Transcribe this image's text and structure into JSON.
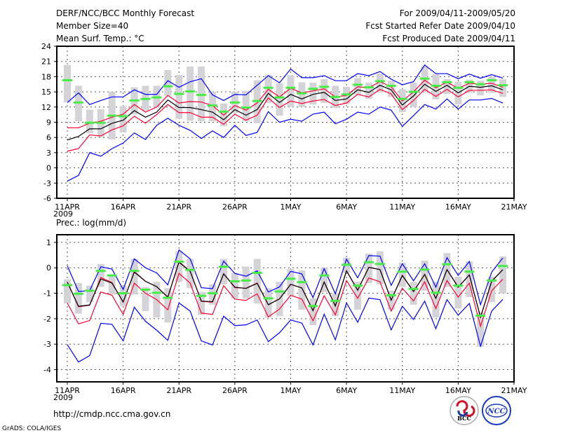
{
  "header": {
    "title": "DERF/NCC/BCC Monthly Forecast",
    "member_size": "Member Size=40",
    "variable": "Mean Surf. Temp.: °C",
    "period": "For 2009/04/11-2009/05/20",
    "fcst_started": "Fcst Started Refer Date 2009/04/10",
    "fcst_produced": "Fcst Produced Date 2009/04/11"
  },
  "footer": {
    "url": "http://cmdp.ncc.cma.gov.cn",
    "grads": "GrADS: COLA/IGES",
    "logos": [
      "BCC",
      "NCC"
    ]
  },
  "colors": {
    "envelope": "#0000ff",
    "spread": "#ff0033",
    "mean": "#000000",
    "marker": "#44ee44",
    "box": "#d4d4d8"
  },
  "chart_data": [
    {
      "type": "line",
      "title": "Mean Surf. Temp.: °C",
      "ylim": [
        -6,
        24
      ],
      "yticks": [
        "24",
        "21",
        "18",
        "15",
        "12",
        "9",
        "6",
        "3",
        "0",
        "-3",
        "-6"
      ],
      "xticks": [
        {
          "label": "11APR",
          "day": 0,
          "sub": "2009"
        },
        {
          "label": "16APR",
          "day": 5
        },
        {
          "label": "21APR",
          "day": 10
        },
        {
          "label": "26APR",
          "day": 15
        },
        {
          "label": "1MAY",
          "day": 20
        },
        {
          "label": "6MAY",
          "day": 25
        },
        {
          "label": "11MAY",
          "day": 30
        },
        {
          "label": "16MAY",
          "day": 35
        },
        {
          "label": "21MAY",
          "day": 40
        }
      ],
      "grid": true,
      "series": [
        {
          "name": "max",
          "color": "#0000ff",
          "values": [
            12.9,
            14.8,
            12.5,
            13.3,
            14.0,
            14.0,
            15.4,
            14.5,
            14.5,
            17.2,
            15.9,
            17.0,
            17.6,
            14.4,
            13.3,
            14.5,
            14.4,
            16.3,
            18.2,
            16.8,
            19.5,
            17.8,
            17.8,
            18.2,
            17.2,
            17.2,
            18.6,
            18.2,
            19.0,
            17.5,
            16.4,
            17.0,
            20.3,
            18.6,
            18.6,
            17.6,
            18.5,
            17.7,
            18.4,
            17.7
          ]
        },
        {
          "name": "upper",
          "color": "#ff0033",
          "values": [
            7.9,
            7.9,
            8.8,
            9.2,
            10.0,
            10.6,
            12.5,
            11.0,
            12.0,
            14.3,
            12.8,
            13.1,
            13.0,
            12.3,
            10.4,
            12.3,
            11.4,
            12.8,
            15.5,
            14.0,
            15.7,
            14.8,
            15.2,
            15.6,
            14.0,
            14.3,
            16.0,
            15.8,
            17.0,
            16.0,
            13.2,
            15.0,
            17.3,
            15.8,
            16.9,
            15.7,
            16.7,
            16.5,
            16.7,
            15.9
          ]
        },
        {
          "name": "mean",
          "color": "#000000",
          "values": [
            5.5,
            6.2,
            7.7,
            7.7,
            8.8,
            9.4,
            11.3,
            10.0,
            11.0,
            13.4,
            11.9,
            11.9,
            11.5,
            11.0,
            9.5,
            11.5,
            10.4,
            11.5,
            14.7,
            12.9,
            14.5,
            13.6,
            14.5,
            14.9,
            13.3,
            13.6,
            15.4,
            14.9,
            16.3,
            15.4,
            12.4,
            14.2,
            16.5,
            15.1,
            16.3,
            14.8,
            16.1,
            15.9,
            16.2,
            15.4
          ]
        },
        {
          "name": "lower",
          "color": "#ff0033",
          "values": [
            3.3,
            3.8,
            6.5,
            6.3,
            7.5,
            8.3,
            10.2,
            8.8,
            10.5,
            12.5,
            10.9,
            10.9,
            10.0,
            10.0,
            8.6,
            10.6,
            9.4,
            10.4,
            13.8,
            11.9,
            13.2,
            12.7,
            13.2,
            13.5,
            12.3,
            12.8,
            14.5,
            14.0,
            15.5,
            14.6,
            11.5,
            13.3,
            15.5,
            14.1,
            15.5,
            14.0,
            15.3,
            15.3,
            15.4,
            14.7
          ]
        },
        {
          "name": "min",
          "color": "#0000ff",
          "values": [
            -2.6,
            -1.5,
            3.0,
            2.3,
            3.8,
            4.9,
            6.9,
            5.6,
            8.4,
            9.8,
            8.4,
            7.4,
            5.8,
            7.3,
            6.0,
            8.4,
            6.4,
            7.0,
            11.1,
            9.0,
            9.6,
            9.2,
            10.6,
            11.0,
            8.7,
            9.6,
            11.0,
            10.6,
            12.0,
            11.4,
            8.2,
            10.3,
            12.5,
            11.6,
            13.6,
            11.6,
            13.4,
            13.4,
            13.7,
            12.8
          ]
        }
      ],
      "markers": [
        17.3,
        12.9,
        8.9,
        8.9,
        10.3,
        10.2,
        13.3,
        13.6,
        13.9,
        16.1,
        14.6,
        15.1,
        14.4,
        12.3,
        11.1,
        12.9,
        11.9,
        13.2,
        15.8,
        13.9,
        15.8,
        14.7,
        15.6,
        16.0,
        14.0,
        14.5,
        16.4,
        15.9,
        17.1,
        16.2,
        13.6,
        15.0,
        17.6,
        16.2,
        16.9,
        15.8,
        16.9,
        16.5,
        17.3,
        16.3
      ],
      "boxes": [
        [
          12.9,
          20.3
        ],
        [
          9.2,
          16.2
        ],
        [
          6.8,
          11.5
        ],
        [
          6.1,
          11.6
        ],
        [
          5.6,
          15.0
        ],
        [
          7.0,
          12.2
        ],
        [
          10.6,
          15.9
        ],
        [
          11.3,
          16.2
        ],
        [
          12.0,
          16.2
        ],
        [
          14.2,
          19.3
        ],
        [
          9.7,
          18.3
        ],
        [
          9.3,
          20.0
        ],
        [
          9.2,
          20.0
        ],
        [
          9.2,
          15.0
        ],
        [
          8.2,
          12.7
        ],
        [
          10.8,
          15.0
        ],
        [
          9.2,
          15.2
        ],
        [
          8.8,
          17.3
        ],
        [
          12.8,
          18.4
        ],
        [
          10.3,
          16.7
        ],
        [
          12.0,
          18.3
        ],
        [
          12.0,
          16.9
        ],
        [
          12.5,
          16.8
        ],
        [
          12.8,
          17.5
        ],
        [
          11.8,
          16.2
        ],
        [
          12.6,
          16.0
        ],
        [
          14.4,
          17.7
        ],
        [
          13.6,
          16.8
        ],
        [
          14.9,
          18.6
        ],
        [
          14.0,
          17.2
        ],
        [
          11.0,
          15.5
        ],
        [
          12.0,
          16.8
        ],
        [
          15.0,
          20.0
        ],
        [
          13.5,
          18.5
        ],
        [
          14.6,
          17.5
        ],
        [
          12.5,
          17.0
        ],
        [
          14.8,
          17.4
        ],
        [
          14.3,
          17.2
        ],
        [
          14.8,
          18.0
        ],
        [
          14.0,
          17.5
        ]
      ]
    },
    {
      "type": "line",
      "title": "Prec.: log(mm/d)",
      "ylim": [
        -4.48,
        1.3
      ],
      "yticks": [
        "1",
        "0",
        "-1",
        "-2",
        "-3",
        "-4"
      ],
      "xticks": [
        {
          "label": "11APR",
          "day": 0,
          "sub": "2009"
        },
        {
          "label": "16APR",
          "day": 5
        },
        {
          "label": "21APR",
          "day": 10
        },
        {
          "label": "26APR",
          "day": 15
        },
        {
          "label": "1MAY",
          "day": 20
        },
        {
          "label": "6MAY",
          "day": 25
        },
        {
          "label": "11MAY",
          "day": 30
        },
        {
          "label": "16MAY",
          "day": 35
        },
        {
          "label": "21MAY",
          "day": 40
        }
      ],
      "grid": true,
      "series": [
        {
          "name": "max",
          "color": "#0000ff",
          "values": [
            0.08,
            -0.93,
            -0.9,
            0.04,
            -0.05,
            -0.85,
            0.35,
            0.0,
            -0.2,
            -0.67,
            0.7,
            0.35,
            -0.78,
            -0.82,
            0.26,
            -0.22,
            -0.33,
            -0.12,
            -0.95,
            -0.75,
            -0.14,
            -0.24,
            -1.17,
            -0.03,
            -1.02,
            0.34,
            -0.39,
            0.48,
            0.46,
            -0.69,
            0.16,
            -0.51,
            0.16,
            -0.76,
            0.4,
            -0.3,
            0.25,
            -1.45,
            -0.17,
            0.39
          ]
        },
        {
          "name": "upper",
          "color": "#ff0033",
          "values": [
            -0.56,
            -1.53,
            -1.47,
            -0.38,
            -0.58,
            -1.35,
            -0.15,
            -0.53,
            -0.74,
            -1.15,
            0.24,
            -0.13,
            -1.32,
            -1.35,
            -0.23,
            -0.78,
            -0.8,
            -0.6,
            -1.45,
            -1.22,
            -0.65,
            -0.79,
            -1.68,
            -0.56,
            -1.5,
            -0.12,
            -0.88,
            0.02,
            -0.07,
            -1.27,
            -0.3,
            -0.93,
            -0.26,
            -1.2,
            -0.07,
            -0.76,
            -0.28,
            -1.94,
            -0.53,
            -0.07
          ]
        },
        {
          "name": "mean",
          "color": "#000000",
          "values": [
            -0.56,
            -1.51,
            -1.46,
            -0.44,
            -0.6,
            -1.34,
            -0.17,
            -0.53,
            -0.74,
            -1.15,
            0.22,
            -0.14,
            -1.31,
            -1.33,
            -0.24,
            -0.76,
            -0.81,
            -0.61,
            -1.45,
            -1.22,
            -0.65,
            -0.79,
            -1.68,
            -0.56,
            -1.5,
            -0.12,
            -0.88,
            0.02,
            -0.07,
            -1.27,
            -0.3,
            -0.93,
            -0.26,
            -1.2,
            -0.07,
            -0.76,
            -0.28,
            -1.94,
            -0.53,
            -0.07
          ]
        },
        {
          "name": "lower",
          "color": "#ff0033",
          "values": [
            -1.38,
            -2.2,
            -2.07,
            -0.95,
            -1.08,
            -1.83,
            -0.6,
            -1.0,
            -1.25,
            -1.65,
            -0.22,
            -0.6,
            -1.78,
            -1.83,
            -0.7,
            -1.23,
            -1.28,
            -1.02,
            -1.93,
            -1.62,
            -1.08,
            -1.23,
            -2.08,
            -1.1,
            -1.85,
            -0.5,
            -1.2,
            -0.4,
            -0.55,
            -1.7,
            -0.8,
            -1.3,
            -0.55,
            -1.6,
            -0.5,
            -1.15,
            -0.6,
            -2.3,
            -0.9,
            -0.45
          ]
        },
        {
          "name": "min",
          "color": "#0000ff",
          "values": [
            -3.02,
            -3.7,
            -3.45,
            -2.18,
            -2.22,
            -2.87,
            -1.55,
            -2.1,
            -2.45,
            -2.85,
            -1.38,
            -1.7,
            -2.87,
            -3.03,
            -1.9,
            -2.27,
            -2.24,
            -2.05,
            -2.9,
            -2.55,
            -2.05,
            -2.17,
            -3.03,
            -1.82,
            -2.83,
            -1.38,
            -2.14,
            -1.19,
            -1.25,
            -2.44,
            -1.51,
            -2.03,
            -1.31,
            -2.39,
            -1.25,
            -1.86,
            -1.4,
            -3.08,
            -1.7,
            -1.24
          ]
        }
      ],
      "markers": [
        -0.68,
        -1.02,
        -0.9,
        -0.12,
        -0.3,
        -1.0,
        -0.12,
        -0.86,
        -0.98,
        -1.18,
        0.24,
        -0.08,
        -1.1,
        -1.0,
        0.04,
        -0.53,
        -0.5,
        -0.2,
        -1.2,
        -0.93,
        -0.43,
        -0.56,
        -1.5,
        -0.3,
        -1.3,
        0.12,
        -0.7,
        0.22,
        0.15,
        -1.08,
        -0.15,
        -0.83,
        -0.07,
        -0.98,
        0.14,
        -0.7,
        -0.15,
        -1.88,
        -0.5,
        0.07
      ],
      "boxes": [
        [
          -1.4,
          -0.45
        ],
        [
          -1.8,
          -0.6
        ],
        [
          -1.35,
          -0.7
        ],
        [
          -0.75,
          0.15
        ],
        [
          -1.05,
          -0.25
        ],
        [
          -1.5,
          -0.7
        ],
        [
          -1.05,
          0.35
        ],
        [
          -1.7,
          -0.75
        ],
        [
          -1.95,
          -0.55
        ],
        [
          -2.15,
          -0.8
        ],
        [
          -0.55,
          0.65
        ],
        [
          -0.8,
          0.35
        ],
        [
          -1.85,
          -0.95
        ],
        [
          -1.45,
          -0.65
        ],
        [
          -0.65,
          0.35
        ],
        [
          -1.2,
          -0.2
        ],
        [
          -1.2,
          0.05
        ],
        [
          -1.4,
          0.35
        ],
        [
          -1.95,
          -0.8
        ],
        [
          -1.9,
          -0.55
        ],
        [
          -1.1,
          -0.05
        ],
        [
          -1.65,
          -0.1
        ],
        [
          -2.25,
          -1.2
        ],
        [
          -0.95,
          0.0
        ],
        [
          -1.9,
          -1.0
        ],
        [
          -0.2,
          0.4
        ],
        [
          -1.65,
          -0.55
        ],
        [
          -0.6,
          0.55
        ],
        [
          -0.65,
          0.65
        ],
        [
          -1.65,
          -0.9
        ],
        [
          -0.75,
          0.2
        ],
        [
          -1.45,
          -0.55
        ],
        [
          -0.9,
          0.28
        ],
        [
          -1.95,
          -0.55
        ],
        [
          -0.75,
          0.58
        ],
        [
          -1.6,
          -0.35
        ],
        [
          -1.15,
          0.25
        ],
        [
          -3.1,
          -1.75
        ],
        [
          -1.35,
          -0.35
        ],
        [
          -1.0,
          0.45
        ]
      ]
    }
  ]
}
